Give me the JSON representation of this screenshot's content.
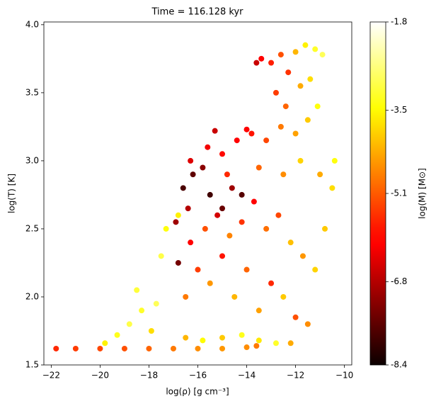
{
  "chart_data": {
    "type": "scatter",
    "title": "Time = 116.128 kyr",
    "x_label": "log(ρ) [g cm⁻³]",
    "y_label": "log(T) [K]",
    "colorbar_label": "log(M) [M⊙]",
    "colormap": "hot",
    "xlim": [
      -22.3,
      -9.7
    ],
    "ylim": [
      1.5,
      4.02
    ],
    "xticks": [
      {
        "value": -22,
        "label": "−22"
      },
      {
        "value": -20,
        "label": "−20"
      },
      {
        "value": -18,
        "label": "−18"
      },
      {
        "value": -16,
        "label": "−16"
      },
      {
        "value": -14,
        "label": "−14"
      },
      {
        "value": -12,
        "label": "−12"
      },
      {
        "value": -10,
        "label": "−10"
      }
    ],
    "yticks": [
      {
        "value": 1.5,
        "label": "1.5"
      },
      {
        "value": 2.0,
        "label": "2.0"
      },
      {
        "value": 2.5,
        "label": "2.5"
      },
      {
        "value": 3.0,
        "label": "3.0"
      },
      {
        "value": 3.5,
        "label": "3.5"
      },
      {
        "value": 4.0,
        "label": "4.0"
      }
    ],
    "clim": [
      -8.4,
      -1.8
    ],
    "cticks": [
      -1.8,
      -3.5,
      -5.1,
      -6.8,
      -8.4
    ],
    "x": [
      -21.8,
      -21,
      -20,
      -19,
      -18,
      -17,
      -16,
      -15,
      -14,
      -13.6,
      -19.8,
      -19.3,
      -18.8,
      -18.3,
      -17.7,
      -17.9,
      -18.5,
      -17.5,
      -17.3,
      -16.8,
      -16.5,
      -15.8,
      -15,
      -14.2,
      -13.5,
      -12.8,
      -12.2,
      -16.5,
      -16,
      -15.5,
      -15,
      -14.5,
      -14,
      -13.5,
      -13,
      -12.5,
      -12,
      -11.5,
      -16.3,
      -15.7,
      -15.2,
      -14.7,
      -14.2,
      -13.7,
      -13.2,
      -12.7,
      -12.2,
      -11.7,
      -11.2,
      -10.8,
      -10.5,
      -10.4,
      -11,
      -16.8,
      -16.6,
      -16.2,
      -15.8,
      -15.5,
      -15,
      -14.6,
      -14.2,
      -16.9,
      -16.4,
      -16.3,
      -15.6,
      -15,
      -14.4,
      -13.8,
      -13.2,
      -12.6,
      -12,
      -11.5,
      -14.8,
      -13.5,
      -12.5,
      -11.8,
      -15.3,
      -14,
      -13.4,
      -13,
      -12.6,
      -12.3,
      -12,
      -11.6,
      -11.2,
      -11.8,
      -11.4,
      -12.8,
      -13.6,
      -11.1,
      -12.4,
      -10.9
    ],
    "y": [
      1.62,
      1.62,
      1.62,
      1.62,
      1.62,
      1.62,
      1.62,
      1.62,
      1.63,
      1.64,
      1.66,
      1.72,
      1.8,
      1.9,
      1.95,
      1.75,
      2.05,
      2.3,
      2.5,
      2.6,
      1.7,
      1.68,
      1.7,
      1.72,
      1.68,
      1.66,
      1.66,
      2.0,
      2.2,
      2.1,
      2.3,
      2.0,
      2.2,
      1.9,
      2.1,
      2.0,
      1.85,
      1.8,
      2.4,
      2.5,
      2.6,
      2.45,
      2.55,
      2.7,
      2.5,
      2.6,
      2.4,
      2.3,
      2.2,
      2.5,
      2.8,
      3.0,
      2.9,
      2.25,
      2.8,
      2.9,
      2.95,
      2.75,
      2.65,
      2.8,
      2.75,
      2.55,
      2.65,
      3.0,
      3.1,
      3.05,
      3.15,
      3.2,
      3.15,
      3.25,
      3.2,
      3.3,
      2.9,
      2.95,
      2.9,
      3.0,
      3.22,
      3.23,
      3.75,
      3.72,
      3.78,
      3.65,
      3.8,
      3.85,
      3.82,
      3.55,
      3.6,
      3.5,
      3.72,
      3.4,
      3.4,
      3.78
    ],
    "c": [
      -5.6,
      -5.4,
      -5.3,
      -5.2,
      -5.0,
      -4.8,
      -4.6,
      -4.5,
      -4.6,
      -4.8,
      -3.6,
      -3.3,
      -3.0,
      -3.2,
      -2.9,
      -3.8,
      -3.1,
      -3.0,
      -3.4,
      -3.6,
      -4.2,
      -3.5,
      -4.0,
      -3.3,
      -3.7,
      -3.2,
      -4.3,
      -4.8,
      -5.4,
      -4.5,
      -5.8,
      -4.2,
      -5.0,
      -4.4,
      -5.6,
      -4.0,
      -5.2,
      -4.6,
      -6.0,
      -5.2,
      -6.5,
      -4.7,
      -5.5,
      -6.0,
      -4.9,
      -5.3,
      -4.1,
      -4.5,
      -3.9,
      -4.0,
      -3.8,
      -3.4,
      -4.3,
      -7.4,
      -7.8,
      -7.6,
      -7.2,
      -7.9,
      -7.5,
      -7.0,
      -7.7,
      -7.0,
      -6.8,
      -6.4,
      -6.2,
      -5.9,
      -6.0,
      -5.8,
      -5.3,
      -4.8,
      -4.4,
      -4.0,
      -5.6,
      -5.0,
      -4.6,
      -3.9,
      -6.6,
      -6.1,
      -6.0,
      -5.7,
      -5.2,
      -5.5,
      -4.2,
      -3.6,
      -3.2,
      -4.3,
      -3.8,
      -5.4,
      -6.6,
      -3.4,
      -5.0,
      -2.9
    ]
  }
}
